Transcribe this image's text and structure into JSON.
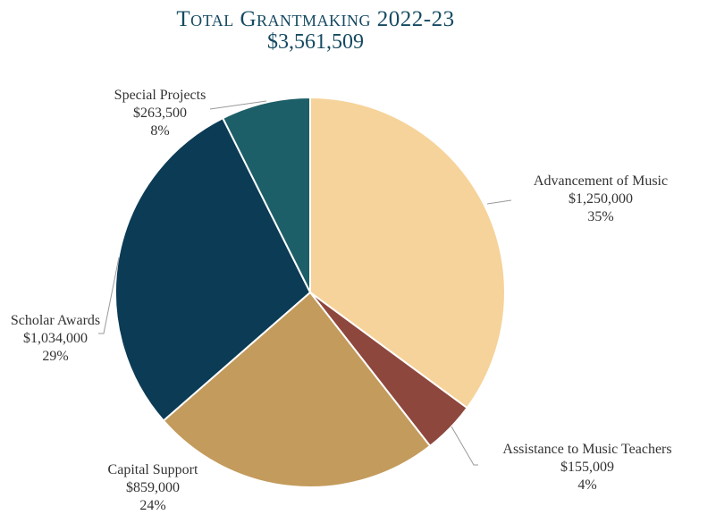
{
  "chart_data": {
    "type": "pie",
    "title": "Total Grantmaking 2022-23",
    "subtitle": "$3,561,509",
    "total": 3561509,
    "slices": [
      {
        "label": "Advancement of Music",
        "value": 1250000,
        "value_label": "$1,250,000",
        "percent_label": "35%",
        "color": "#f6d39a"
      },
      {
        "label": "Assistance to Music Teachers",
        "value": 155009,
        "value_label": "$155,009",
        "percent_label": "4%",
        "color": "#8e473d"
      },
      {
        "label": "Capital Support",
        "value": 859000,
        "value_label": "$859,000",
        "percent_label": "24%",
        "color": "#c39b5c"
      },
      {
        "label": "Scholar Awards",
        "value": 1034000,
        "value_label": "$1,034,000",
        "percent_label": "29%",
        "color": "#0b3b55"
      },
      {
        "label": "Special Projects",
        "value": 263500,
        "value_label": "$263,500",
        "percent_label": "8%",
        "color": "#1d5f68"
      }
    ],
    "start_angle": "top",
    "direction": "clockwise",
    "legend": "none"
  }
}
